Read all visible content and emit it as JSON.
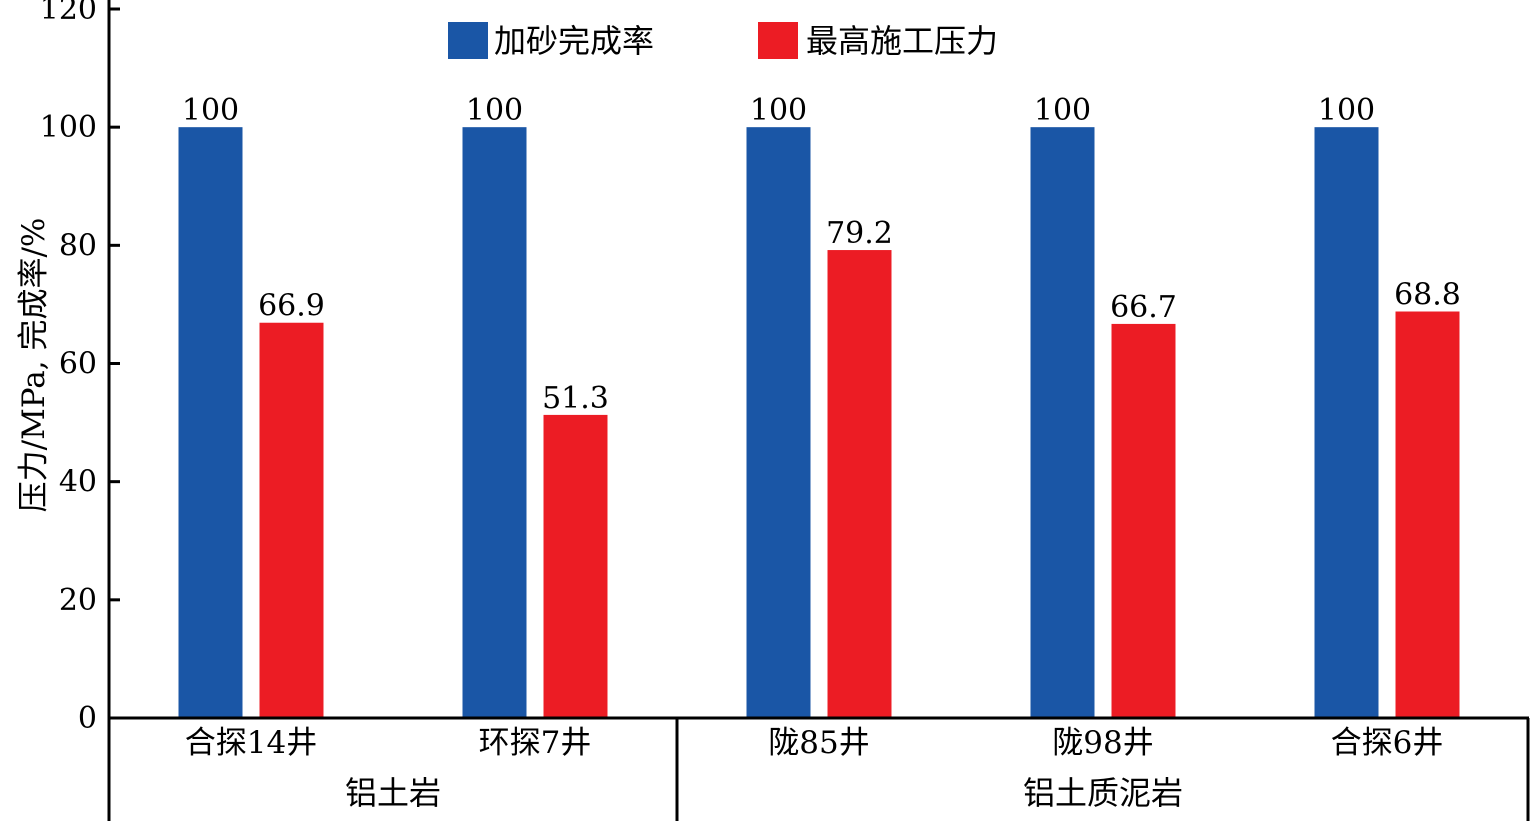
{
  "chart_data": {
    "type": "bar",
    "categories": [
      "合探14井",
      "环探7井",
      "陇85井",
      "陇98井",
      "合探6井"
    ],
    "groups": [
      {
        "label": "铝土岩",
        "categories": [
          "合探14井",
          "环探7井"
        ]
      },
      {
        "label": "铝土质泥岩",
        "categories": [
          "陇85井",
          "陇98井",
          "合探6井"
        ]
      }
    ],
    "series": [
      {
        "name": "加砂完成率",
        "color": "#1a56a6",
        "values": [
          100,
          100,
          100,
          100,
          100
        ],
        "labels": [
          "100",
          "100",
          "100",
          "100",
          "100"
        ]
      },
      {
        "name": "最高施工压力",
        "color": "#ec1c24",
        "values": [
          66.9,
          51.3,
          79.2,
          66.7,
          68.8
        ],
        "labels": [
          "66.9",
          "51.3",
          "79.2",
          "66.7",
          "68.8"
        ]
      }
    ],
    "ylabel": "压力/MPa, 完成率/%",
    "ylim": [
      0,
      120
    ],
    "yticks": [
      "0",
      "20",
      "40",
      "60",
      "80",
      "100",
      "120"
    ],
    "grid": false,
    "legend_position": "top-center"
  }
}
